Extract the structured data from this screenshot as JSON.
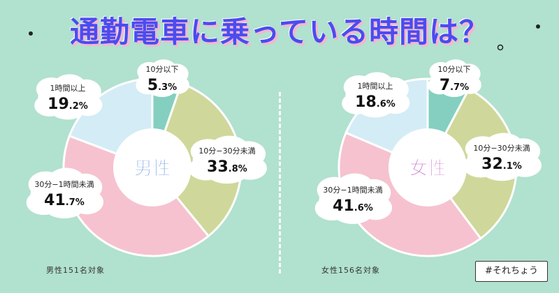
{
  "title": "通勤電車に乗っている時間は？",
  "hashtag": "#それちょう",
  "colors": {
    "background": "#b1e1cf",
    "title": "#4a4cf0",
    "title_shadow": "#f6b6cf",
    "male_label": "#3d7fd6",
    "female_label": "#c25cc9"
  },
  "chart_data": [
    {
      "type": "pie",
      "donut": true,
      "center_label": "男性",
      "footnote": "男性151名対象",
      "slices": [
        {
          "label": "10分以下",
          "value": 5.3,
          "value_int": "5",
          "value_dec": ".3%",
          "color": "#84cfc0"
        },
        {
          "label": "10分−30分未満",
          "value": 33.8,
          "value_int": "33",
          "value_dec": ".8%",
          "color": "#cfd89a"
        },
        {
          "label": "30分−1時間未満",
          "value": 41.7,
          "value_int": "41",
          "value_dec": ".7%",
          "color": "#f6c2cf"
        },
        {
          "label": "1時間以上",
          "value": 19.2,
          "value_int": "19",
          "value_dec": ".2%",
          "color": "#d4ecf6"
        }
      ]
    },
    {
      "type": "pie",
      "donut": true,
      "center_label": "女性",
      "footnote": "女性156名対象",
      "slices": [
        {
          "label": "10分以下",
          "value": 7.7,
          "value_int": "7",
          "value_dec": ".7%",
          "color": "#84cfc0"
        },
        {
          "label": "10分−30分未満",
          "value": 32.1,
          "value_int": "32",
          "value_dec": ".1%",
          "color": "#cfd89a"
        },
        {
          "label": "30分−1時間未満",
          "value": 41.6,
          "value_int": "41",
          "value_dec": ".6%",
          "color": "#f6c2cf"
        },
        {
          "label": "1時間以上",
          "value": 18.6,
          "value_int": "18",
          "value_dec": ".6%",
          "color": "#d4ecf6"
        }
      ]
    }
  ]
}
